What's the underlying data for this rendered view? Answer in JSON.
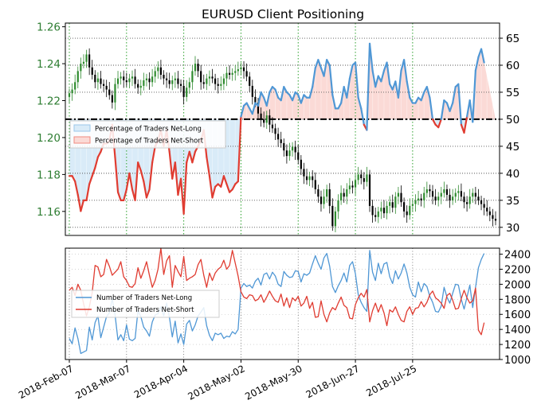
{
  "title": "EURUSD Client Positioning",
  "colors": {
    "price_tick": "#2e7d32",
    "net_long": "#4f97d5",
    "net_short": "#e03c31",
    "long_fill": "#d9ebf8",
    "short_fill": "#fbdad6",
    "candle_up": "#2e8b2e",
    "candle_down": "#000000",
    "grid": "#2ca02c",
    "grid_minor": "#bbbbbb"
  },
  "legend_top": {
    "placement": "left",
    "items": [
      {
        "label": "Percentage of Traders Net-Long",
        "color": "#d9ebf8",
        "edge": "#9cc7ea"
      },
      {
        "label": "Percentage of Traders Net-Short",
        "color": "#fbdad6",
        "edge": "#f08a80"
      }
    ]
  },
  "legend_bottom": {
    "placement": "left",
    "items": [
      {
        "label": "Number of Traders Net-Long",
        "color": "#4f97d5"
      },
      {
        "label": "Number of Traders Net-Short",
        "color": "#e03c31"
      }
    ]
  },
  "chart_data": [
    {
      "type": "candlestick",
      "name": "price",
      "title": "EURUSD Client Positioning",
      "x_tick_labels": [
        "2018-Feb-07",
        "2018-Mar-07",
        "2018-Apr-04",
        "2018-May-02",
        "2018-May-30",
        "2018-Jun-27",
        "2018-Jul-25"
      ],
      "y_ticks": [
        "1.16",
        "1.18",
        "1.20",
        "1.22",
        "1.24",
        "1.26"
      ],
      "ylim": [
        1.147,
        1.262
      ],
      "grid": true,
      "closes": [
        1.224,
        1.226,
        1.23,
        1.236,
        1.24,
        1.241,
        1.245,
        1.238,
        1.234,
        1.23,
        1.232,
        1.229,
        1.228,
        1.226,
        1.223,
        1.219,
        1.229,
        1.232,
        1.233,
        1.231,
        1.23,
        1.232,
        1.233,
        1.229,
        1.227,
        1.228,
        1.231,
        1.232,
        1.23,
        1.233,
        1.236,
        1.238,
        1.234,
        1.232,
        1.231,
        1.229,
        1.231,
        1.232,
        1.229,
        1.228,
        1.222,
        1.227,
        1.23,
        1.236,
        1.24,
        1.236,
        1.23,
        1.229,
        1.232,
        1.233,
        1.232,
        1.229,
        1.228,
        1.229,
        1.232,
        1.235,
        1.234,
        1.235,
        1.236,
        1.237,
        1.238,
        1.236,
        1.233,
        1.228,
        1.222,
        1.219,
        1.213,
        1.21,
        1.208,
        1.212,
        1.207,
        1.205,
        1.202,
        1.199,
        1.197,
        1.193,
        1.19,
        1.193,
        1.195,
        1.192,
        1.188,
        1.183,
        1.179,
        1.177,
        1.179,
        1.177,
        1.172,
        1.168,
        1.164,
        1.168,
        1.172,
        1.163,
        1.152,
        1.16,
        1.166,
        1.17,
        1.168,
        1.172,
        1.174,
        1.173,
        1.177,
        1.18,
        1.178,
        1.176,
        1.18,
        1.163,
        1.158,
        1.157,
        1.16,
        1.162,
        1.159,
        1.163,
        1.165,
        1.162,
        1.168,
        1.17,
        1.165,
        1.16,
        1.158,
        1.163,
        1.164,
        1.166,
        1.167,
        1.166,
        1.17,
        1.172,
        1.171,
        1.168,
        1.166,
        1.168,
        1.17,
        1.172,
        1.169,
        1.166,
        1.168,
        1.17,
        1.171,
        1.168,
        1.165,
        1.164,
        1.168,
        1.17,
        1.168,
        1.166,
        1.164,
        1.162,
        1.16,
        1.158,
        1.156,
        1.155
      ]
    },
    {
      "type": "line",
      "name": "percent",
      "y_ticks": [
        "30",
        "35",
        "40",
        "45",
        "50",
        "55",
        "60",
        "65"
      ],
      "ylim": [
        28.5,
        67.8
      ],
      "reference_line": 50,
      "series": [
        {
          "name": "Percentage of Traders Net-Long",
          "values": [
            39.5,
            39.5,
            38.5,
            36.0,
            33.0,
            35.0,
            35.0,
            38.0,
            39.5,
            41.0,
            43.0,
            44.0,
            45.5,
            45.5,
            46.0,
            49.0,
            43.0,
            36.5,
            35.0,
            35.0,
            37.0,
            40.0,
            37.0,
            35.0,
            42.0,
            40.5,
            38.5,
            35.5,
            37.0,
            42.0,
            45.0,
            46.0,
            48.0,
            45.0,
            48.0,
            44.0,
            39.0,
            42.0,
            36.0,
            39.0,
            32.5,
            42.0,
            44.0,
            42.0,
            44.0,
            45.0,
            46.0,
            48.0,
            43.0,
            39.5,
            35.5,
            37.5,
            38.0,
            37.5,
            39.5,
            38.0,
            36.5,
            37.0,
            38.0,
            38.5,
            50.5,
            52.5,
            53.0,
            52.0,
            51.0,
            53.0,
            52.5,
            55.0,
            54.0,
            52.5,
            55.0,
            56.0,
            55.5,
            54.0,
            53.5,
            56.0,
            55.0,
            54.5,
            53.5,
            55.0,
            54.5,
            53.0,
            54.5,
            54.0,
            54.0,
            56.0,
            59.5,
            61.0,
            59.5,
            58.0,
            61.0,
            60.0,
            54.5,
            52.0,
            52.0,
            53.0,
            56.0,
            54.0,
            57.5,
            60.0,
            60.5,
            54.0,
            52.0,
            49.0,
            48.0,
            64.0,
            59.0,
            56.0,
            58.0,
            57.0,
            59.0,
            60.5,
            56.5,
            55.5,
            57.0,
            54.0,
            59.0,
            61.0,
            57.0,
            54.0,
            53.0,
            53.0,
            54.0,
            53.5,
            55.0,
            56.0,
            54.0,
            50.0,
            49.0,
            48.5,
            50.0,
            53.5,
            53.0,
            51.5,
            53.0,
            56.0,
            56.5,
            49.0,
            47.5,
            50.5,
            53.5,
            49.5,
            59.0,
            61.5,
            63.0,
            60.5
          ]
        }
      ]
    },
    {
      "type": "line",
      "name": "counts",
      "y_ticks": [
        "1000",
        "1200",
        "1400",
        "1600",
        "1800",
        "2000",
        "2200",
        "2400"
      ],
      "ylim": [
        1000,
        2480
      ],
      "series": [
        {
          "name": "Number of Traders Net-Long",
          "values": [
            1280,
            1210,
            1420,
            1280,
            1080,
            1100,
            1120,
            1430,
            1260,
            1490,
            1580,
            1290,
            1430,
            1570,
            1620,
            1810,
            1590,
            1260,
            1330,
            1250,
            1460,
            1270,
            1250,
            1280,
            1650,
            1570,
            1430,
            1380,
            1310,
            1500,
            1590,
            1610,
            1700,
            1580,
            1750,
            1560,
            1300,
            1510,
            1220,
            1340,
            1200,
            1470,
            1520,
            1380,
            1460,
            1580,
            1630,
            1690,
            1450,
            1320,
            1250,
            1350,
            1330,
            1350,
            1280,
            1310,
            1300,
            1370,
            1340,
            1400,
            1950,
            2010,
            1970,
            1990,
            1950,
            2040,
            2080,
            1990,
            2130,
            2150,
            2070,
            2160,
            2110,
            2000,
            1970,
            2170,
            2120,
            2090,
            2100,
            2180,
            2170,
            2030,
            2140,
            2120,
            2150,
            2270,
            2380,
            2280,
            2200,
            2350,
            2410,
            2240,
            1970,
            1890,
            1980,
            2050,
            2150,
            2030,
            2250,
            2300,
            2140,
            1860,
            1760,
            1690,
            1640,
            2450,
            2160,
            2050,
            2280,
            2140,
            2270,
            2290,
            2100,
            2010,
            2180,
            2070,
            2150,
            2270,
            2150,
            1960,
            1860,
            1830,
            2030,
            1900,
            2010,
            1970,
            1840,
            1760,
            1640,
            1630,
            1710,
            1960,
            1830,
            1750,
            1880,
            2000,
            1990,
            1800,
            1670,
            1830,
            1990,
            1690,
            1960,
            2220,
            2330,
            2410
          ]
        },
        {
          "name": "Number of Traders Net-Short",
          "values": [
            1920,
            1960,
            1850,
            2000,
            1920,
            1740,
            1580,
            1700,
            1890,
            2250,
            2230,
            2100,
            2130,
            2330,
            2240,
            2120,
            2160,
            2200,
            2300,
            2100,
            2050,
            1970,
            1960,
            2010,
            2220,
            2080,
            2180,
            2300,
            2120,
            1960,
            2050,
            2200,
            2480,
            2130,
            2310,
            2380,
            1960,
            2250,
            2170,
            2100,
            2370,
            2050,
            2080,
            2100,
            2130,
            2260,
            2330,
            2120,
            1960,
            2150,
            2050,
            2150,
            2200,
            2230,
            2320,
            2200,
            2250,
            2450,
            2280,
            2110,
            1900,
            1830,
            1810,
            1860,
            1850,
            1780,
            1800,
            1860,
            1760,
            1830,
            1910,
            1840,
            1780,
            1760,
            1870,
            1710,
            1820,
            1690,
            1820,
            1780,
            1840,
            1710,
            1750,
            1840,
            1680,
            1760,
            1560,
            1570,
            1780,
            1600,
            1500,
            1620,
            1690,
            1660,
            1750,
            1830,
            1720,
            1690,
            1550,
            1540,
            1730,
            1820,
            1880,
            1830,
            1930,
            1500,
            1650,
            1750,
            1630,
            1730,
            1620,
            1450,
            1660,
            1630,
            1700,
            1600,
            1520,
            1500,
            1640,
            1700,
            1600,
            1680,
            1690,
            1770,
            1700,
            1760,
            1860,
            1910,
            1820,
            1790,
            1750,
            1680,
            1850,
            1880,
            1790,
            1670,
            1680,
            1810,
            1920,
            1820,
            1750,
            1780,
            1950,
            1390,
            1330,
            1490
          ]
        }
      ]
    }
  ]
}
